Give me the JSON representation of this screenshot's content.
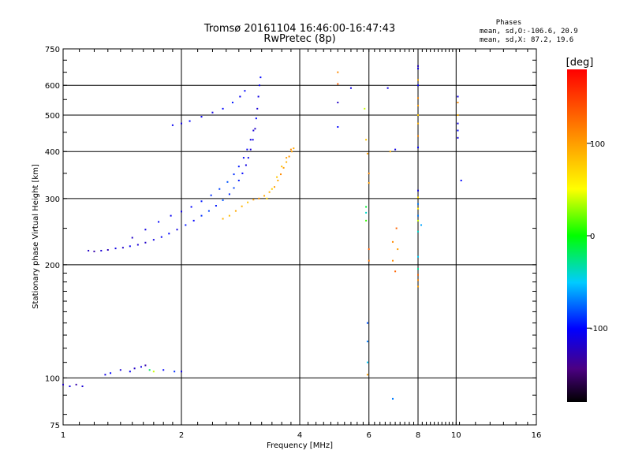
{
  "title_line1": "Tromsø 20161104 16:46:00-16:47:43",
  "title_line2": "RwPretec (8p)",
  "stats": {
    "heading": "Phases",
    "line_o": "mean, sd,O:-106.6, 20.9",
    "line_x": "mean, sd,X:  87.2, 19.6"
  },
  "colorbar": {
    "label": "[deg]",
    "ticks": [
      {
        "value": 100,
        "label": "100"
      },
      {
        "value": 0,
        "label": "0"
      },
      {
        "value": -100,
        "label": "-100"
      }
    ],
    "range": [
      -180,
      180
    ]
  },
  "chart_data": {
    "type": "scatter",
    "title": "Tromsø 20161104 16:46:00-16:47:43",
    "subtitle": "RwPretec (8p)",
    "xlabel": "Frequency [MHz]",
    "ylabel": "Stationary phase Virtual Height [km]",
    "xscale": "log",
    "yscale": "log",
    "xlim": [
      1,
      16
    ],
    "ylim": [
      75,
      750
    ],
    "xticks": [
      {
        "value": 1,
        "label": "1"
      },
      {
        "value": 2,
        "label": "2"
      },
      {
        "value": 4,
        "label": "4"
      },
      {
        "value": 6,
        "label": "6"
      },
      {
        "value": 8,
        "label": "8"
      },
      {
        "value": 10,
        "label": "10"
      },
      {
        "value": 16,
        "label": "16"
      }
    ],
    "yticks": [
      {
        "value": 75,
        "label": "75"
      },
      {
        "value": 100,
        "label": "100"
      },
      {
        "value": 200,
        "label": "200"
      },
      {
        "value": 300,
        "label": "300"
      },
      {
        "value": 400,
        "label": "400"
      },
      {
        "value": 500,
        "label": "500"
      },
      {
        "value": 600,
        "label": "600"
      },
      {
        "value": 750,
        "label": "750"
      }
    ],
    "grid_x": [
      2,
      4,
      6,
      8,
      10
    ],
    "grid_y": [
      100,
      200,
      300,
      400,
      500,
      600
    ],
    "points": [
      [
        1.0,
        96,
        -120
      ],
      [
        1.04,
        95,
        -110
      ],
      [
        1.08,
        96,
        -130
      ],
      [
        1.12,
        95,
        -115
      ],
      [
        1.28,
        102,
        -110
      ],
      [
        1.32,
        103,
        -100
      ],
      [
        1.4,
        105,
        -115
      ],
      [
        1.48,
        104,
        -105
      ],
      [
        1.52,
        106,
        -120
      ],
      [
        1.58,
        107,
        -110
      ],
      [
        1.62,
        108,
        -130
      ],
      [
        1.66,
        105,
        -20
      ],
      [
        1.7,
        104,
        40
      ],
      [
        1.8,
        105,
        -100
      ],
      [
        1.92,
        104,
        -90
      ],
      [
        2.0,
        104,
        -110
      ],
      [
        1.16,
        218,
        -120
      ],
      [
        1.2,
        217,
        -130
      ],
      [
        1.25,
        218,
        -115
      ],
      [
        1.3,
        219,
        -125
      ],
      [
        1.36,
        221,
        -110
      ],
      [
        1.42,
        222,
        -120
      ],
      [
        1.48,
        224,
        -105
      ],
      [
        1.55,
        226,
        -115
      ],
      [
        1.62,
        229,
        -120
      ],
      [
        1.7,
        233,
        -110
      ],
      [
        1.78,
        237,
        -105
      ],
      [
        1.86,
        242,
        -100
      ],
      [
        1.95,
        248,
        -110
      ],
      [
        2.05,
        255,
        -95
      ],
      [
        2.15,
        262,
        -100
      ],
      [
        2.25,
        270,
        -90
      ],
      [
        2.35,
        278,
        -85
      ],
      [
        2.45,
        287,
        -95
      ],
      [
        2.55,
        297,
        -80
      ],
      [
        2.65,
        308,
        -90
      ],
      [
        2.72,
        320,
        -85
      ],
      [
        2.8,
        335,
        -95
      ],
      [
        2.86,
        350,
        -100
      ],
      [
        2.92,
        368,
        -110
      ],
      [
        2.96,
        385,
        -105
      ],
      [
        3.0,
        405,
        -115
      ],
      [
        3.04,
        430,
        -110
      ],
      [
        3.08,
        460,
        -120
      ],
      [
        3.1,
        490,
        -100
      ],
      [
        3.12,
        520,
        -115
      ],
      [
        3.14,
        560,
        -110
      ],
      [
        3.16,
        600,
        -105
      ],
      [
        3.18,
        630,
        -100
      ],
      [
        1.5,
        236,
        -120
      ],
      [
        1.62,
        248,
        -110
      ],
      [
        1.75,
        260,
        -100
      ],
      [
        1.88,
        270,
        -105
      ],
      [
        2.0,
        277,
        -110
      ],
      [
        2.12,
        285,
        -100
      ],
      [
        2.25,
        295,
        -95
      ],
      [
        2.38,
        306,
        -90
      ],
      [
        2.5,
        318,
        -85
      ],
      [
        2.62,
        332,
        -80
      ],
      [
        2.72,
        348,
        -90
      ],
      [
        2.8,
        365,
        -95
      ],
      [
        2.88,
        385,
        -100
      ],
      [
        2.94,
        405,
        -105
      ],
      [
        3.0,
        430,
        -110
      ],
      [
        3.05,
        455,
        -115
      ],
      [
        1.9,
        470,
        -105
      ],
      [
        2.0,
        475,
        -110
      ],
      [
        2.1,
        482,
        -100
      ],
      [
        2.25,
        495,
        -105
      ],
      [
        2.4,
        508,
        -110
      ],
      [
        2.55,
        520,
        -100
      ],
      [
        2.7,
        540,
        -95
      ],
      [
        2.82,
        560,
        -105
      ],
      [
        2.9,
        580,
        -100
      ],
      [
        2.55,
        265,
        90
      ],
      [
        2.65,
        270,
        85
      ],
      [
        2.75,
        278,
        95
      ],
      [
        2.85,
        286,
        90
      ],
      [
        2.95,
        293,
        80
      ],
      [
        3.05,
        298,
        100
      ],
      [
        3.15,
        300,
        105
      ],
      [
        3.25,
        305,
        95
      ],
      [
        3.35,
        312,
        90
      ],
      [
        3.45,
        322,
        100
      ],
      [
        3.52,
        335,
        95
      ],
      [
        3.58,
        348,
        110
      ],
      [
        3.64,
        362,
        100
      ],
      [
        3.7,
        375,
        90
      ],
      [
        3.76,
        388,
        105
      ],
      [
        3.82,
        400,
        100
      ],
      [
        3.86,
        408,
        95
      ],
      [
        3.3,
        300,
        70
      ],
      [
        3.4,
        318,
        75
      ],
      [
        3.5,
        342,
        80
      ],
      [
        3.6,
        365,
        85
      ],
      [
        3.7,
        385,
        100
      ],
      [
        3.8,
        405,
        110
      ],
      [
        5.0,
        650,
        110
      ],
      [
        5.0,
        605,
        130
      ],
      [
        5.0,
        540,
        -120
      ],
      [
        5.0,
        465,
        -100
      ],
      [
        5.4,
        590,
        -110
      ],
      [
        5.85,
        520,
        40
      ],
      [
        5.9,
        430,
        80
      ],
      [
        5.95,
        395,
        100
      ],
      [
        6.0,
        350,
        110
      ],
      [
        6.0,
        330,
        100
      ],
      [
        5.9,
        285,
        -10
      ],
      [
        5.9,
        275,
        -40
      ],
      [
        5.9,
        262,
        10
      ],
      [
        6.0,
        220,
        130
      ],
      [
        6.0,
        205,
        120
      ],
      [
        5.95,
        140,
        -80
      ],
      [
        5.95,
        125,
        -70
      ],
      [
        5.95,
        110,
        -50
      ],
      [
        5.95,
        102,
        100
      ],
      [
        6.9,
        88,
        -70
      ],
      [
        6.7,
        590,
        -110
      ],
      [
        6.8,
        400,
        90
      ],
      [
        7.0,
        405,
        -110
      ],
      [
        7.05,
        250,
        130
      ],
      [
        6.9,
        230,
        110
      ],
      [
        7.1,
        220,
        100
      ],
      [
        6.9,
        205,
        110
      ],
      [
        7.0,
        192,
        130
      ],
      [
        8.0,
        675,
        -120
      ],
      [
        8.0,
        665,
        -110
      ],
      [
        8.0,
        620,
        90
      ],
      [
        8.0,
        600,
        -100
      ],
      [
        8.0,
        555,
        110
      ],
      [
        8.0,
        530,
        100
      ],
      [
        8.0,
        500,
        80
      ],
      [
        8.0,
        475,
        90
      ],
      [
        8.0,
        440,
        110
      ],
      [
        8.0,
        410,
        -100
      ],
      [
        8.0,
        315,
        -110
      ],
      [
        8.0,
        302,
        70
      ],
      [
        8.0,
        290,
        -70
      ],
      [
        8.0,
        282,
        60
      ],
      [
        8.0,
        270,
        -70
      ],
      [
        8.0,
        262,
        40
      ],
      [
        8.15,
        255,
        -60
      ],
      [
        8.0,
        245,
        -40
      ],
      [
        8.0,
        210,
        -50
      ],
      [
        8.0,
        195,
        -30
      ],
      [
        8.0,
        188,
        130
      ],
      [
        8.0,
        182,
        110
      ],
      [
        8.0,
        175,
        100
      ],
      [
        10.1,
        560,
        -110
      ],
      [
        10.1,
        540,
        110
      ],
      [
        10.1,
        500,
        90
      ],
      [
        10.1,
        475,
        -110
      ],
      [
        10.1,
        455,
        -100
      ],
      [
        10.1,
        435,
        -110
      ],
      [
        10.3,
        335,
        -100
      ]
    ]
  }
}
